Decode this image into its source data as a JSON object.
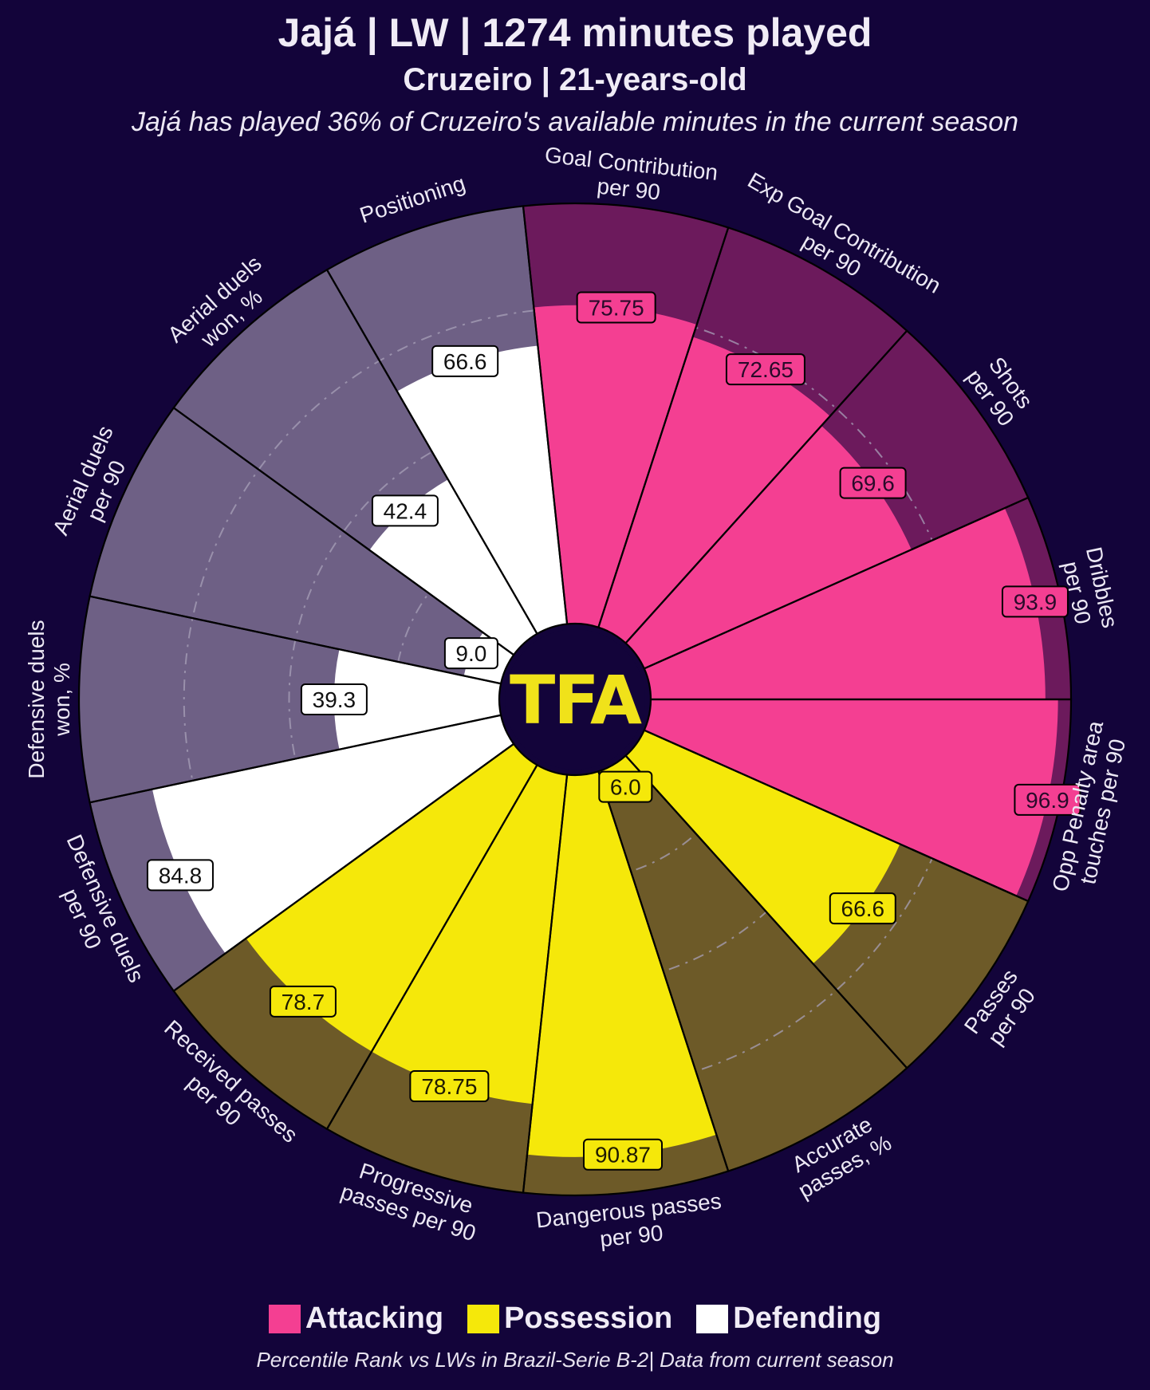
{
  "header": {
    "title": "Jajá | LW | 1274 minutes played",
    "subtitle": "Cruzeiro | 21-years-old",
    "description": "Jajá has played 36% of Cruzeiro's available minutes in the current season"
  },
  "logo": {
    "text": "TFA",
    "color": "#f0e21a"
  },
  "colors": {
    "background": "#13043a",
    "attacking": "#f43f92",
    "attacking_bg": "#6c1a5c",
    "possession": "#f5e80a",
    "possession_bg": "#6d5a28",
    "defending": "#ffffff",
    "defending_bg": "#6e6085"
  },
  "legend": [
    {
      "label": "Attacking",
      "color": "#f43f92"
    },
    {
      "label": "Possession",
      "color": "#f5e80a"
    },
    {
      "label": "Defending",
      "color": "#ffffff"
    }
  ],
  "footer": "Percentile Rank vs LWs in Brazil-Serie B-2| Data from current season",
  "chart_data": {
    "type": "pie",
    "subtype": "radar-pizza",
    "title": "Jajá | LW | 1274 minutes played",
    "value_range": [
      0,
      100
    ],
    "gridlines": [
      25,
      50,
      75
    ],
    "parameters": [
      {
        "label": "Goal Contribution\nper 90",
        "value": 75.75,
        "group": "Attacking",
        "value_label": "75.75"
      },
      {
        "label": "Exp Goal Contribution\nper 90",
        "value": 72.65,
        "group": "Attacking",
        "value_label": "72.65"
      },
      {
        "label": "Shots\nper 90",
        "value": 69.6,
        "group": "Attacking",
        "value_label": "69.6"
      },
      {
        "label": "Dribbles\nper 90",
        "value": 93.9,
        "group": "Attacking",
        "value_label": "93.9"
      },
      {
        "label": "Opp Penalty area\ntouches per 90",
        "value": 96.9,
        "group": "Attacking",
        "value_label": "96.9"
      },
      {
        "label": "Passes\nper 90",
        "value": 66.6,
        "group": "Possession",
        "value_label": "66.6"
      },
      {
        "label": "Accurate\npasses, %",
        "value": 6.0,
        "group": "Possession",
        "value_label": "6.0"
      },
      {
        "label": "Dangerous passes\nper 90",
        "value": 90.87,
        "group": "Possession",
        "value_label": "90.87"
      },
      {
        "label": "Progressive\npasses per 90",
        "value": 78.75,
        "group": "Possession",
        "value_label": "78.75"
      },
      {
        "label": "Received passes\nper 90",
        "value": 78.7,
        "group": "Possession",
        "value_label": "78.7"
      },
      {
        "label": "Defensive duels\nper 90",
        "value": 84.8,
        "group": "Defending",
        "value_label": "84.8"
      },
      {
        "label": "Defensive duels\nwon, %",
        "value": 39.3,
        "group": "Defending",
        "value_label": "39.3"
      },
      {
        "label": "Aerial duels\nper 90",
        "value": 9.0,
        "group": "Defending",
        "value_label": "9.0"
      },
      {
        "label": "Aerial duels\nwon, %",
        "value": 42.4,
        "group": "Defending",
        "value_label": "42.4"
      },
      {
        "label": "Positioning",
        "value": 66.6,
        "group": "Defending",
        "value_label": "66.6"
      }
    ]
  }
}
